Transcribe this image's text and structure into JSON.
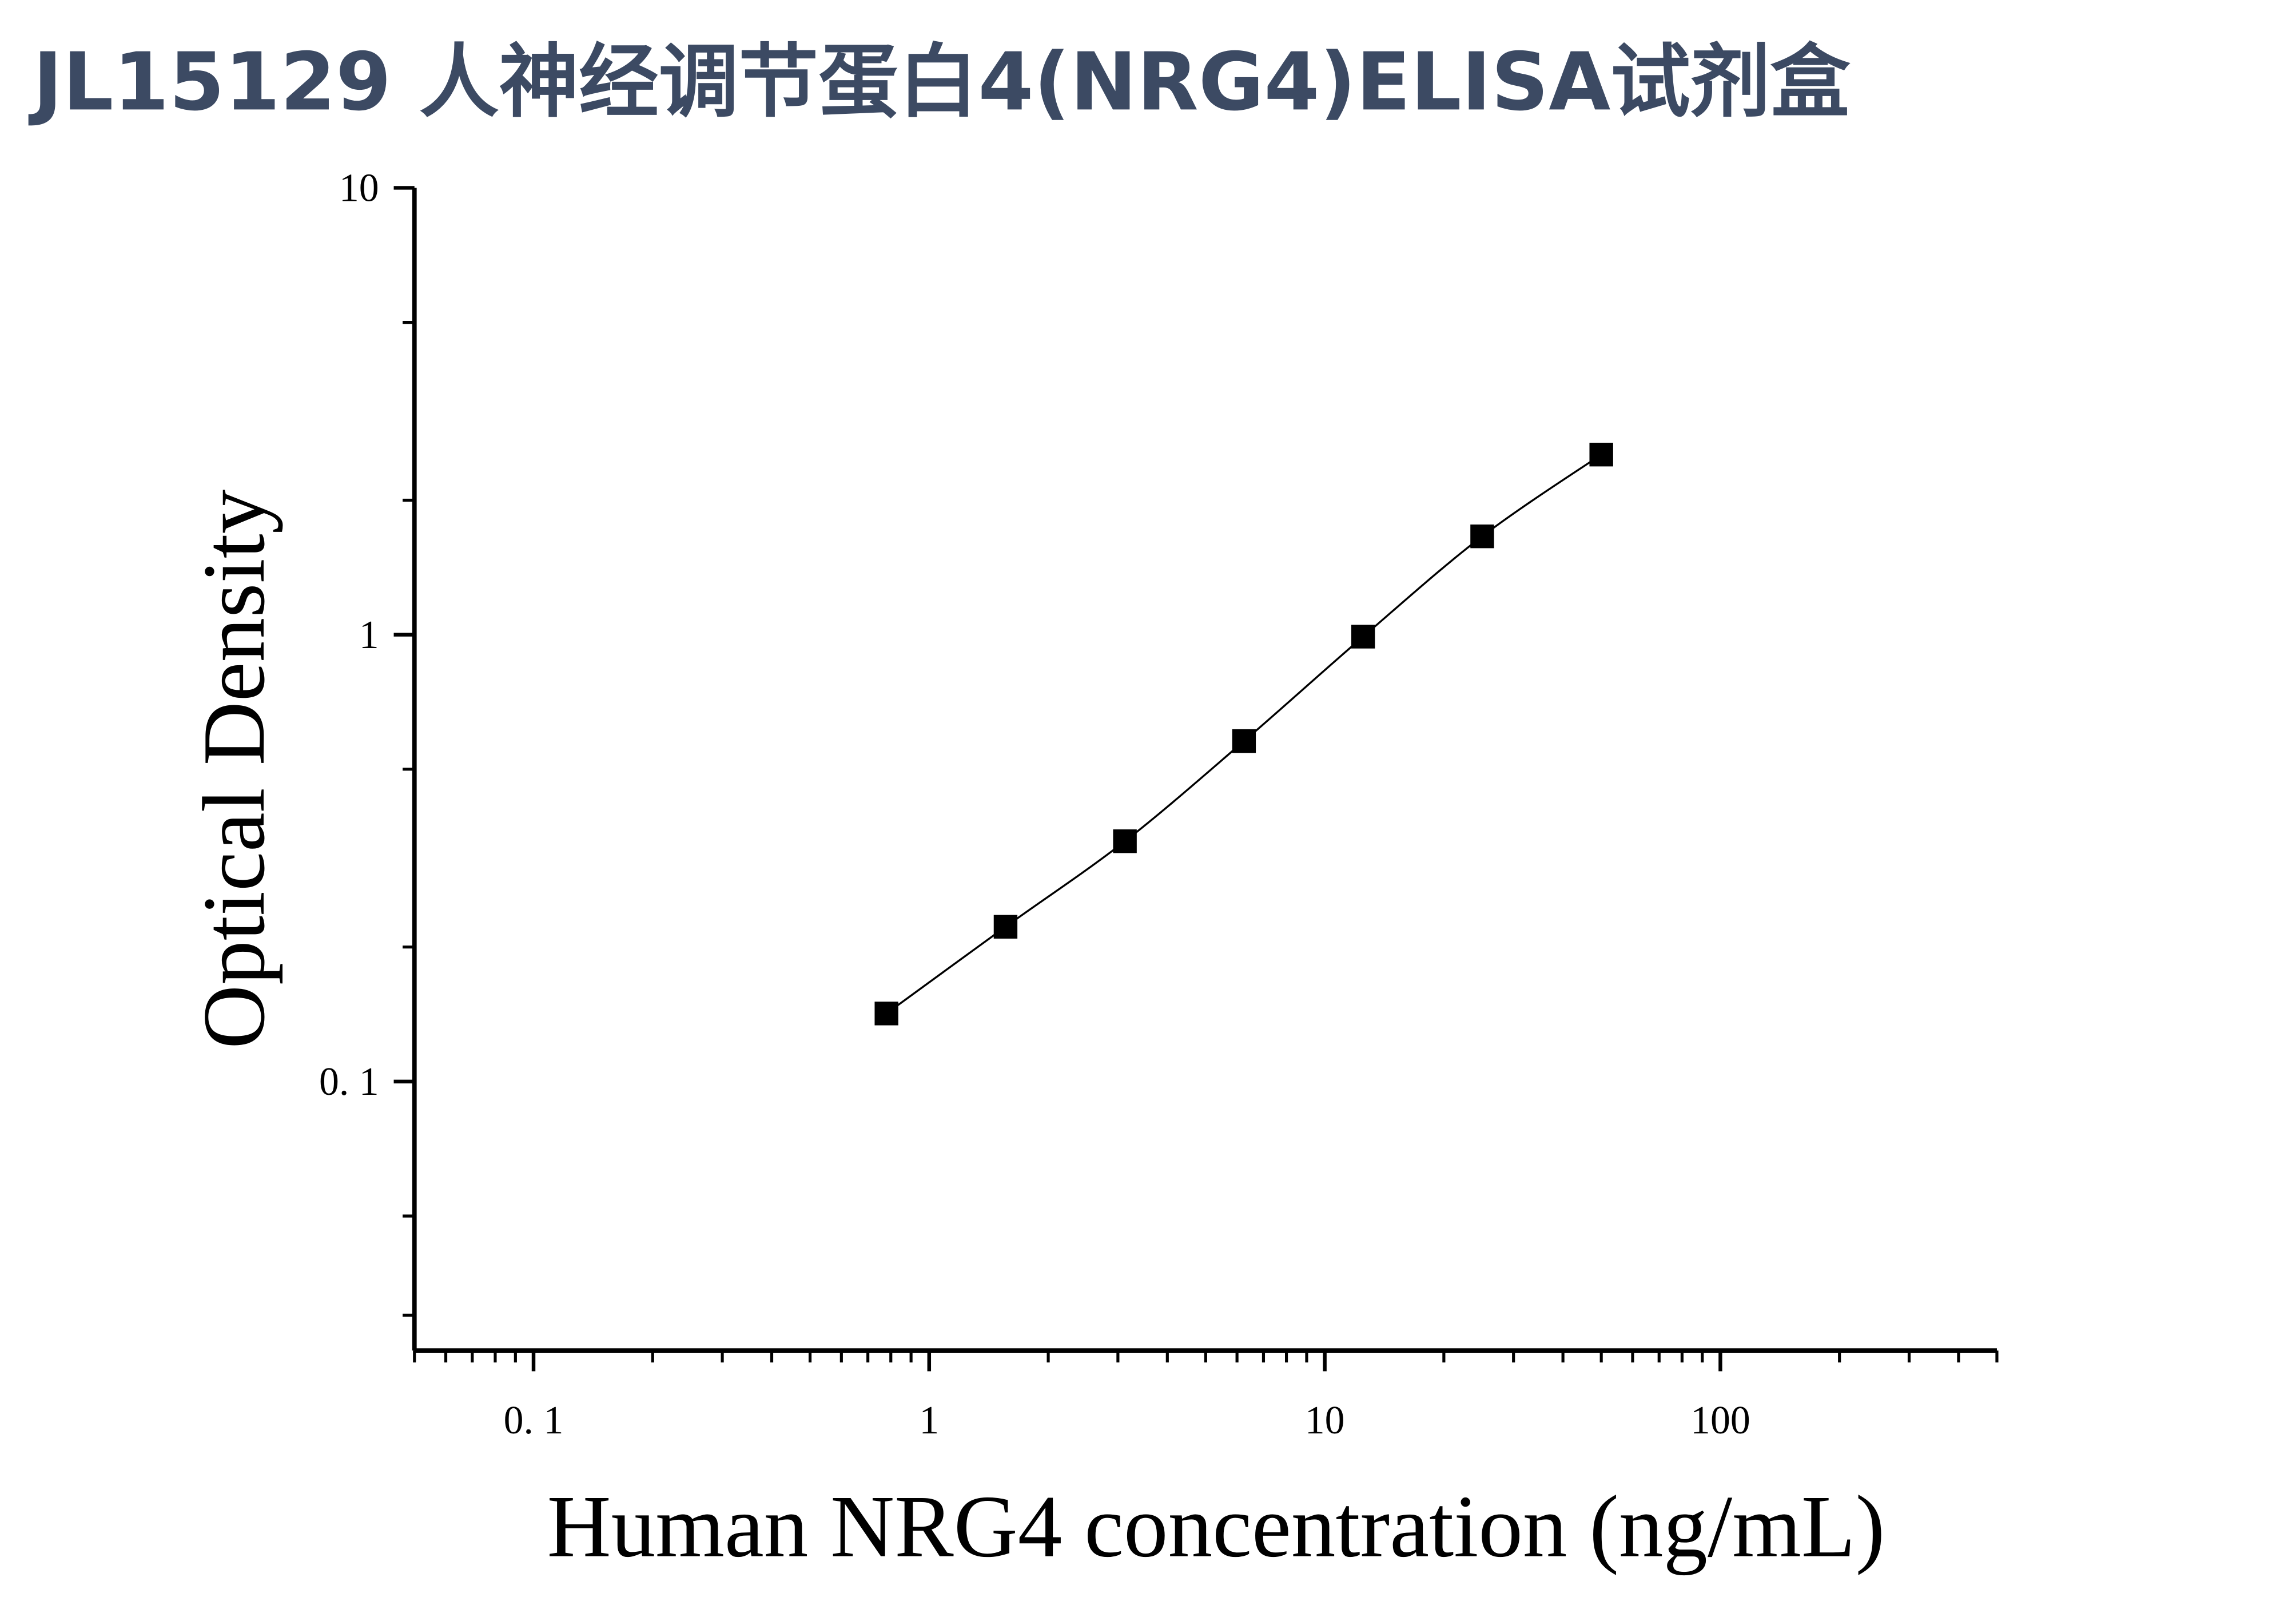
{
  "chart_data": {
    "type": "line",
    "title": "JL15129 人神经调节蛋白4(NRG4)ELISA试剂盒",
    "x_label": "Human NRG4 concentration (ng/mL)",
    "y_label": "Optical Density",
    "x": [
      0.78,
      1.56,
      3.125,
      6.25,
      12.5,
      25,
      50
    ],
    "series": [
      {
        "color": "#000000",
        "values": [
          0.142,
          0.222,
          0.345,
          0.578,
          0.99,
          1.66,
          2.53
        ]
      }
    ],
    "xscale": "log",
    "yscale": "log",
    "xlim": [
      0.05,
      500
    ],
    "ylim": [
      0.025,
      10
    ],
    "xticks": [
      {
        "value": 0.1,
        "label": "0. 1"
      },
      1,
      10,
      100
    ],
    "yticks": [
      {
        "value": 0.1,
        "label": "0. 1"
      },
      1,
      10
    ],
    "xminorticks": [
      0.05,
      0.06,
      0.07,
      0.08,
      0.09,
      0.2,
      0.3,
      0.4,
      0.5,
      0.6,
      0.7,
      0.8,
      0.9,
      2,
      3,
      4,
      5,
      6,
      7,
      8,
      9,
      20,
      30,
      40,
      50,
      60,
      70,
      80,
      90,
      200,
      300,
      400,
      500
    ],
    "yminorticks": [
      0.03,
      0.05,
      0.2,
      0.5,
      2,
      5
    ],
    "grid": false
  }
}
